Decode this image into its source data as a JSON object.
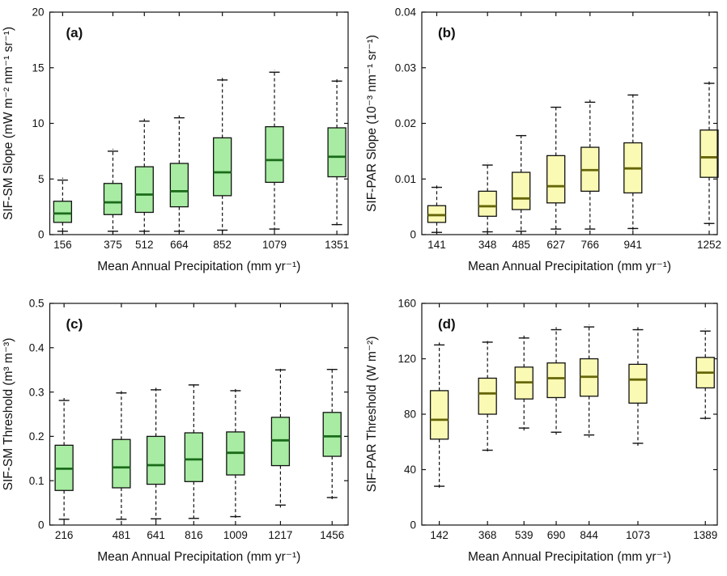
{
  "figure": {
    "background": "#FFFFFF",
    "frame_color": "#111111",
    "whisker_color": "#111111"
  },
  "chart_data": [
    {
      "type": "box",
      "panel_label": "(a)",
      "ylabel": "SIF-SM Slope (mW m⁻² nm⁻¹ sr⁻¹)",
      "xlabel": "Mean Annual Precipitation (mm yr⁻¹)",
      "ylim": [
        0,
        20
      ],
      "yticks": [
        0,
        5,
        10,
        15,
        20
      ],
      "xlim": [
        100,
        1400
      ],
      "grid": false,
      "box_fill": "#A7ECA2",
      "box_edge": "#111111",
      "median_color": "#1A6B1A",
      "categories": [
        156,
        375,
        512,
        664,
        852,
        1079,
        1351
      ],
      "boxes": [
        {
          "x": 156,
          "whisker_low": 0.3,
          "q1": 1.1,
          "median": 1.9,
          "q3": 3.0,
          "whisker_high": 4.9
        },
        {
          "x": 375,
          "whisker_low": 0.3,
          "q1": 1.8,
          "median": 2.9,
          "q3": 4.6,
          "whisker_high": 7.5
        },
        {
          "x": 512,
          "whisker_low": 0.3,
          "q1": 2.0,
          "median": 3.6,
          "q3": 6.1,
          "whisker_high": 10.2
        },
        {
          "x": 664,
          "whisker_low": 0.3,
          "q1": 2.5,
          "median": 3.9,
          "q3": 6.4,
          "whisker_high": 10.5
        },
        {
          "x": 852,
          "whisker_low": 0.4,
          "q1": 3.5,
          "median": 5.6,
          "q3": 8.7,
          "whisker_high": 13.9
        },
        {
          "x": 1079,
          "whisker_low": 0.5,
          "q1": 4.7,
          "median": 6.7,
          "q3": 9.7,
          "whisker_high": 14.6
        },
        {
          "x": 1351,
          "whisker_low": 0.9,
          "q1": 5.2,
          "median": 7.0,
          "q3": 9.6,
          "whisker_high": 13.8
        }
      ]
    },
    {
      "type": "box",
      "panel_label": "(b)",
      "ylabel": "SIF-PAR Slope (10⁻³ nm⁻¹ sr⁻¹)",
      "xlabel": "Mean Annual Precipitation (mm yr⁻¹)",
      "ylim": [
        0,
        0.04
      ],
      "yticks": [
        0,
        0.01,
        0.02,
        0.03,
        0.04
      ],
      "xlim": [
        80,
        1285
      ],
      "grid": false,
      "box_fill": "#FAFAB4",
      "box_edge": "#111111",
      "median_color": "#66660A",
      "categories": [
        141,
        348,
        485,
        627,
        766,
        941,
        1252
      ],
      "boxes": [
        {
          "x": 141,
          "whisker_low": 0.0004,
          "q1": 0.0022,
          "median": 0.0035,
          "q3": 0.0052,
          "whisker_high": 0.0085
        },
        {
          "x": 348,
          "whisker_low": 0.0005,
          "q1": 0.0033,
          "median": 0.0051,
          "q3": 0.0078,
          "whisker_high": 0.0125
        },
        {
          "x": 485,
          "whisker_low": 0.0006,
          "q1": 0.0045,
          "median": 0.0065,
          "q3": 0.0112,
          "whisker_high": 0.0178
        },
        {
          "x": 627,
          "whisker_low": 0.001,
          "q1": 0.0057,
          "median": 0.0087,
          "q3": 0.0142,
          "whisker_high": 0.0229
        },
        {
          "x": 766,
          "whisker_low": 0.001,
          "q1": 0.0078,
          "median": 0.0116,
          "q3": 0.0157,
          "whisker_high": 0.0238
        },
        {
          "x": 941,
          "whisker_low": 0.0011,
          "q1": 0.0075,
          "median": 0.0119,
          "q3": 0.0165,
          "whisker_high": 0.0251
        },
        {
          "x": 1252,
          "whisker_low": 0.002,
          "q1": 0.0103,
          "median": 0.0139,
          "q3": 0.0188,
          "whisker_high": 0.0272
        }
      ]
    },
    {
      "type": "box",
      "panel_label": "(c)",
      "ylabel": "SIF-SM Threshold (m³ m⁻³)",
      "xlabel": "Mean Annual Precipitation (mm yr⁻¹)",
      "ylim": [
        0,
        0.5
      ],
      "yticks": [
        0,
        0.1,
        0.2,
        0.3,
        0.4,
        0.5
      ],
      "xlim": [
        150,
        1530
      ],
      "grid": false,
      "box_fill": "#A7ECA2",
      "box_edge": "#111111",
      "median_color": "#1A6B1A",
      "categories": [
        216,
        481,
        641,
        816,
        1009,
        1217,
        1456
      ],
      "boxes": [
        {
          "x": 216,
          "whisker_low": 0.013,
          "q1": 0.078,
          "median": 0.127,
          "q3": 0.18,
          "whisker_high": 0.281
        },
        {
          "x": 481,
          "whisker_low": 0.013,
          "q1": 0.084,
          "median": 0.13,
          "q3": 0.193,
          "whisker_high": 0.298
        },
        {
          "x": 641,
          "whisker_low": 0.014,
          "q1": 0.092,
          "median": 0.135,
          "q3": 0.2,
          "whisker_high": 0.305
        },
        {
          "x": 816,
          "whisker_low": 0.015,
          "q1": 0.098,
          "median": 0.148,
          "q3": 0.208,
          "whisker_high": 0.316
        },
        {
          "x": 1009,
          "whisker_low": 0.019,
          "q1": 0.113,
          "median": 0.163,
          "q3": 0.21,
          "whisker_high": 0.303
        },
        {
          "x": 1217,
          "whisker_low": 0.045,
          "q1": 0.134,
          "median": 0.191,
          "q3": 0.243,
          "whisker_high": 0.35
        },
        {
          "x": 1456,
          "whisker_low": 0.062,
          "q1": 0.155,
          "median": 0.2,
          "q3": 0.254,
          "whisker_high": 0.351
        }
      ]
    },
    {
      "type": "box",
      "panel_label": "(d)",
      "ylabel": "SIF-PAR Threshold (W m⁻²)",
      "xlabel": "Mean Annual Precipitation (mm yr⁻¹)",
      "ylim": [
        0,
        160
      ],
      "yticks": [
        0,
        40,
        80,
        120,
        160
      ],
      "xlim": [
        60,
        1445
      ],
      "grid": false,
      "box_fill": "#FAFAB4",
      "box_edge": "#111111",
      "median_color": "#66660A",
      "categories": [
        142,
        368,
        539,
        690,
        844,
        1073,
        1389
      ],
      "boxes": [
        {
          "x": 142,
          "whisker_low": 28,
          "q1": 62,
          "median": 76,
          "q3": 97,
          "whisker_high": 130
        },
        {
          "x": 368,
          "whisker_low": 54,
          "q1": 80,
          "median": 95,
          "q3": 106,
          "whisker_high": 132
        },
        {
          "x": 539,
          "whisker_low": 70,
          "q1": 91,
          "median": 103,
          "q3": 114,
          "whisker_high": 135
        },
        {
          "x": 690,
          "whisker_low": 67,
          "q1": 92,
          "median": 106,
          "q3": 117,
          "whisker_high": 141
        },
        {
          "x": 844,
          "whisker_low": 65,
          "q1": 93,
          "median": 107,
          "q3": 120,
          "whisker_high": 143
        },
        {
          "x": 1073,
          "whisker_low": 59,
          "q1": 88,
          "median": 105,
          "q3": 116,
          "whisker_high": 141
        },
        {
          "x": 1389,
          "whisker_low": 77,
          "q1": 99,
          "median": 110,
          "q3": 121,
          "whisker_high": 140
        }
      ]
    }
  ]
}
